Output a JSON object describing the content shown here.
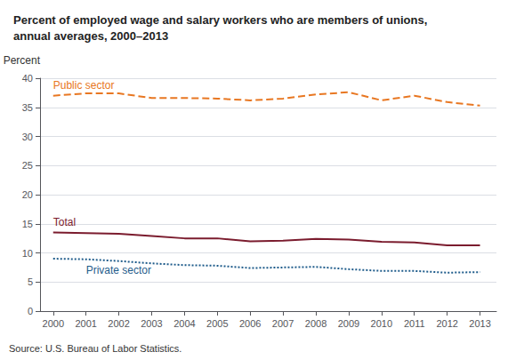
{
  "chart_data": {
    "type": "line",
    "title": "Percent of employed wage and salary workers who are members of unions,\nannual averages, 2000–2013",
    "ylabel": "Percent",
    "source": "Source: U.S. Bureau of Labor Statistics.",
    "x": [
      2000,
      2001,
      2002,
      2003,
      2004,
      2005,
      2006,
      2007,
      2008,
      2009,
      2010,
      2011,
      2012,
      2013
    ],
    "series": [
      {
        "name": "Public sector",
        "color": "#E87722",
        "line_style": "dashed",
        "values": [
          37.0,
          37.4,
          37.4,
          36.6,
          36.6,
          36.5,
          36.2,
          36.5,
          37.2,
          37.6,
          36.2,
          37.0,
          35.9,
          35.3
        ]
      },
      {
        "name": "Total",
        "color": "#7B1C2E",
        "line_style": "solid",
        "values": [
          13.5,
          13.4,
          13.3,
          12.9,
          12.5,
          12.5,
          12.0,
          12.1,
          12.4,
          12.3,
          11.9,
          11.8,
          11.3,
          11.3
        ]
      },
      {
        "name": "Private sector",
        "color": "#1F5C8B",
        "line_style": "dotted",
        "values": [
          9.0,
          8.9,
          8.6,
          8.2,
          7.9,
          7.8,
          7.4,
          7.5,
          7.6,
          7.2,
          6.9,
          6.9,
          6.6,
          6.7
        ]
      }
    ],
    "xlim": [
      1999.6,
      2013.5
    ],
    "xticks": [
      2000,
      2001,
      2002,
      2003,
      2004,
      2005,
      2006,
      2007,
      2008,
      2009,
      2010,
      2011,
      2012,
      2013
    ],
    "ylim": [
      0,
      40
    ],
    "yticks": [
      0,
      5,
      10,
      15,
      20,
      25,
      30,
      35,
      40
    ],
    "grid": true
  }
}
